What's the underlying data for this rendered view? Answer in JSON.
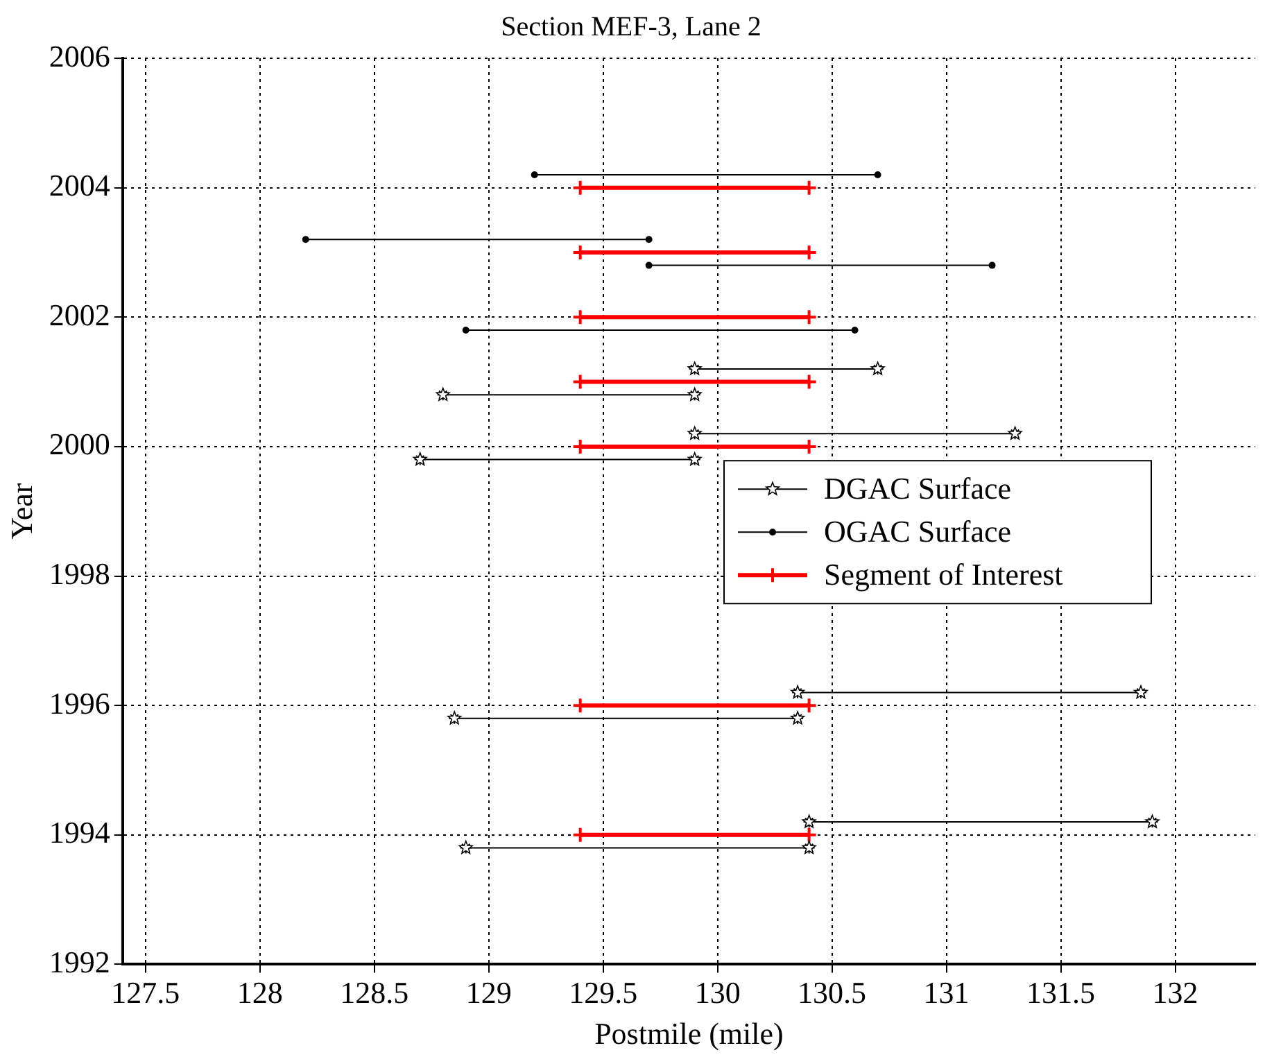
{
  "chart_data": {
    "type": "line",
    "title": "Section MEF-3, Lane 2",
    "xlabel": "Postmile (mile)",
    "ylabel": "Year",
    "xlim": [
      127.4,
      132.35
    ],
    "xticks": [
      127.5,
      128,
      128.5,
      129,
      129.5,
      130,
      130.5,
      131,
      131.5,
      132
    ],
    "ylim": [
      1992,
      2006
    ],
    "yticks": [
      1992,
      1994,
      1996,
      1998,
      2000,
      2002,
      2004,
      2006
    ],
    "grid": true,
    "legend": "right",
    "series": [
      {
        "name": "DGAC Surface",
        "color": "#000000",
        "marker": "star",
        "x": [
          129.9,
          130.7
        ],
        "values": [
          2001.2,
          2001.2
        ]
      },
      {
        "color": "#000000",
        "marker": "star",
        "x": [
          128.8,
          129.9
        ],
        "values": [
          2000.8,
          2000.8
        ]
      },
      {
        "color": "#000000",
        "marker": "star",
        "x": [
          129.9,
          131.3
        ],
        "values": [
          2000.2,
          2000.2
        ]
      },
      {
        "color": "#000000",
        "marker": "star",
        "x": [
          128.7,
          129.9
        ],
        "values": [
          1999.8,
          1999.8
        ]
      },
      {
        "color": "#000000",
        "marker": "star",
        "x": [
          130.35,
          131.85
        ],
        "values": [
          1996.2,
          1996.2
        ]
      },
      {
        "color": "#000000",
        "marker": "star",
        "x": [
          128.85,
          130.35
        ],
        "values": [
          1995.8,
          1995.8
        ]
      },
      {
        "color": "#000000",
        "marker": "star",
        "x": [
          130.4,
          131.9
        ],
        "values": [
          1994.2,
          1994.2
        ]
      },
      {
        "color": "#000000",
        "marker": "star",
        "x": [
          128.9,
          130.4
        ],
        "values": [
          1993.8,
          1993.8
        ]
      },
      {
        "name": "OGAC Surface",
        "color": "#000000",
        "marker": "circle",
        "x": [
          129.2,
          130.7
        ],
        "values": [
          2004.2,
          2004.2
        ]
      },
      {
        "color": "#000000",
        "marker": "circle",
        "x": [
          128.2,
          129.7
        ],
        "values": [
          2003.2,
          2003.2
        ]
      },
      {
        "color": "#000000",
        "marker": "circle",
        "x": [
          129.7,
          131.2
        ],
        "values": [
          2002.8,
          2002.8
        ]
      },
      {
        "color": "#000000",
        "marker": "circle",
        "x": [
          128.9,
          130.6
        ],
        "values": [
          2001.8,
          2001.8
        ]
      },
      {
        "name": "Segment of Interest",
        "color": "#ff0000",
        "marker": "cross",
        "x": [
          129.4,
          130.4
        ],
        "values": [
          2004,
          2004
        ]
      },
      {
        "color": "#ff0000",
        "marker": "cross",
        "x": [
          129.4,
          130.4
        ],
        "values": [
          2003,
          2003
        ]
      },
      {
        "color": "#ff0000",
        "marker": "cross",
        "x": [
          129.4,
          130.4
        ],
        "values": [
          2002,
          2002
        ]
      },
      {
        "color": "#ff0000",
        "marker": "cross",
        "x": [
          129.4,
          130.4
        ],
        "values": [
          2001,
          2001
        ]
      },
      {
        "color": "#ff0000",
        "marker": "cross",
        "x": [
          129.4,
          130.4
        ],
        "values": [
          2000,
          2000
        ]
      },
      {
        "color": "#ff0000",
        "marker": "cross",
        "x": [
          129.4,
          130.4
        ],
        "values": [
          1996,
          1996
        ]
      },
      {
        "color": "#ff0000",
        "marker": "cross",
        "x": [
          129.4,
          130.4
        ],
        "values": [
          1994,
          1994
        ]
      }
    ]
  }
}
